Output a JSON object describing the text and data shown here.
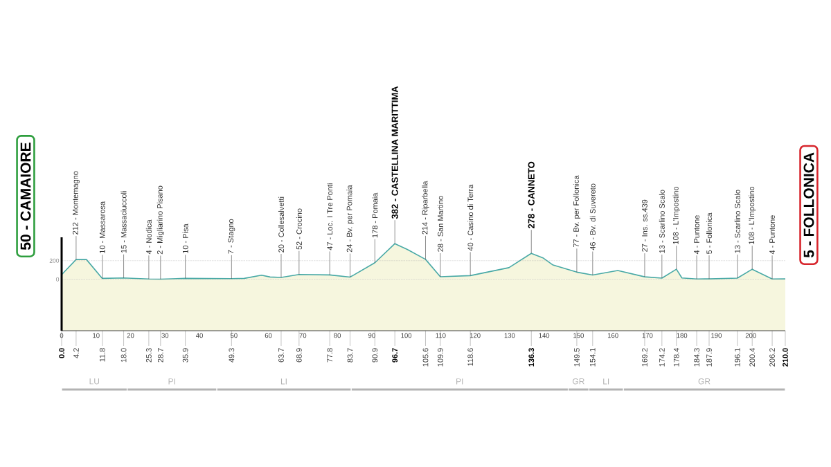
{
  "chart_data": [
    {
      "type": "area",
      "x": [
        0,
        4.2,
        7.2,
        11.8,
        18.0,
        25.3,
        28.7,
        35.9,
        49.3,
        53,
        58,
        60.5,
        63.7,
        68.9,
        77.8,
        83.7,
        90.9,
        96.7,
        100.3,
        105.6,
        109.9,
        118.6,
        129.8,
        136.3,
        139.8,
        142.6,
        149.5,
        154.1,
        161.4,
        169.2,
        174.2,
        178.4,
        180,
        184.3,
        187.9,
        196.1,
        200.4,
        206.2,
        210
      ],
      "values": [
        50,
        212,
        212,
        10,
        15,
        4,
        2,
        10,
        7,
        10,
        45,
        25,
        20,
        52,
        47,
        24,
        178,
        382,
        320,
        214,
        28,
        40,
        125,
        278,
        227,
        153,
        77,
        46,
        94,
        27,
        13,
        108,
        15,
        4,
        5,
        13,
        108,
        4,
        5
      ],
      "color": "#48a9a6",
      "xlim": [
        0,
        210
      ],
      "xticks": [
        0,
        10,
        20,
        30,
        40,
        50,
        60,
        70,
        80,
        90,
        100,
        110,
        120,
        130,
        140,
        150,
        160,
        170,
        180,
        190,
        200
      ],
      "ylim": [
        -550,
        450
      ],
      "yticks": [
        0,
        200
      ],
      "grid": "y",
      "annotations": [
        {
          "text": "50 - CAMAIORE",
          "x": 0,
          "y": 50
        },
        {
          "text": "212 - Montemagno",
          "x": 4.2,
          "y": 212
        },
        {
          "text": "10 - Massarosa",
          "x": 11.8,
          "y": 10
        },
        {
          "text": "15 - Massaciuccoli",
          "x": 18.0,
          "y": 15
        },
        {
          "text": "4 - Nodica",
          "x": 25.3,
          "y": 4
        },
        {
          "text": "2 - Migliarino Pisano",
          "x": 28.7,
          "y": 2
        },
        {
          "text": "10 - Pisa",
          "x": 35.9,
          "y": 10
        },
        {
          "text": "7 - Stagno",
          "x": 49.3,
          "y": 7
        },
        {
          "text": "20 - Collesalvetti",
          "x": 63.7,
          "y": 20
        },
        {
          "text": "52 - Crocino",
          "x": 68.9,
          "y": 52
        },
        {
          "text": "47 - Loc. I Tre Ponti",
          "x": 77.8,
          "y": 47
        },
        {
          "text": "24 - Bv. per Pomaia",
          "x": 83.7,
          "y": 24
        },
        {
          "text": "178 - Pomaia",
          "x": 90.9,
          "y": 178
        },
        {
          "text": "382 - CASTELLINA MARITTIMA",
          "x": 96.7,
          "y": 382
        },
        {
          "text": "214 - Riparbella",
          "x": 105.6,
          "y": 214
        },
        {
          "text": "28 - San Martino",
          "x": 109.9,
          "y": 28
        },
        {
          "text": "40 - Casino di Terra",
          "x": 118.6,
          "y": 40
        },
        {
          "text": "278 - CANNETO",
          "x": 136.3,
          "y": 278
        },
        {
          "text": "77 - Bv. per Follonica",
          "x": 149.5,
          "y": 77
        },
        {
          "text": "46 - Bv. di Suvereto",
          "x": 154.1,
          "y": 46
        },
        {
          "text": "27 - Ins. ss.439",
          "x": 169.2,
          "y": 27
        },
        {
          "text": "13 - Scarlino Scalo",
          "x": 174.2,
          "y": 13
        },
        {
          "text": "108 - L'Impostino",
          "x": 178.4,
          "y": 108
        },
        {
          "text": "4 - Puntone",
          "x": 184.3,
          "y": 4
        },
        {
          "text": "5 - Follonica",
          "x": 187.9,
          "y": 5
        },
        {
          "text": "13 - Scarlino Scalo",
          "x": 196.1,
          "y": 13
        },
        {
          "text": "108 - L'Impostino",
          "x": 200.4,
          "y": 108
        },
        {
          "text": "4 - Puntone",
          "x": 206.2,
          "y": 4
        },
        {
          "text": "5 - FOLLONICA",
          "x": 210,
          "y": 5
        },
        {
          "text": "0.0",
          "x": 0,
          "y": -550
        },
        {
          "text": "4.2",
          "x": 4.2,
          "y": -550
        },
        {
          "text": "11.8",
          "x": 11.8,
          "y": -550
        },
        {
          "text": "18.0",
          "x": 18.0,
          "y": -550
        },
        {
          "text": "25.3",
          "x": 25.3,
          "y": -550
        },
        {
          "text": "28.7",
          "x": 28.7,
          "y": -550
        },
        {
          "text": "35.9",
          "x": 35.9,
          "y": -550
        },
        {
          "text": "49.3",
          "x": 49.3,
          "y": -550
        },
        {
          "text": "63.7",
          "x": 63.7,
          "y": -550
        },
        {
          "text": "68.9",
          "x": 68.9,
          "y": -550
        },
        {
          "text": "77.8",
          "x": 77.8,
          "y": -550
        },
        {
          "text": "83.7",
          "x": 83.7,
          "y": -550
        },
        {
          "text": "90.9",
          "x": 90.9,
          "y": -550
        },
        {
          "text": "96.7",
          "x": 96.7,
          "y": -550
        },
        {
          "text": "105.6",
          "x": 105.6,
          "y": -550
        },
        {
          "text": "109.9",
          "x": 109.9,
          "y": -550
        },
        {
          "text": "118.6",
          "x": 118.6,
          "y": -550
        },
        {
          "text": "136.3",
          "x": 136.3,
          "y": -550
        },
        {
          "text": "149.5",
          "x": 149.5,
          "y": -550
        },
        {
          "text": "154.1",
          "x": 154.1,
          "y": -550
        },
        {
          "text": "169.2",
          "x": 169.2,
          "y": -550
        },
        {
          "text": "174.2",
          "x": 174.2,
          "y": -550
        },
        {
          "text": "178.4",
          "x": 178.4,
          "y": -550
        },
        {
          "text": "184.3",
          "x": 184.3,
          "y": -550
        },
        {
          "text": "187.9",
          "x": 187.9,
          "y": -550
        },
        {
          "text": "196.1",
          "x": 196.1,
          "y": -550
        },
        {
          "text": "200.4",
          "x": 200.4,
          "y": -550
        },
        {
          "text": "206.2",
          "x": 206.2,
          "y": -550
        },
        {
          "text": "210.0",
          "x": 210,
          "y": -550
        }
      ],
      "bands": [
        {
          "axis": "y",
          "from": -550,
          "to": 0,
          "color": "#f6f6de"
        }
      ]
    },
    {
      "type": "bar",
      "orientation": "horizontal",
      "stacked": true,
      "categories": [
        null
      ],
      "series": [
        {
          "name": "LU",
          "color": "#b3b3b3",
          "values": [
            19
          ]
        },
        {
          "name": "PI",
          "color": "#b3b3b3",
          "values": [
            26
          ]
        },
        {
          "name": "LI",
          "color": "#b3b3b3",
          "values": [
            39
          ]
        },
        {
          "name": "PI",
          "color": "#b3b3b3",
          "values": [
            63
          ]
        },
        {
          "name": "GR",
          "color": "#b3b3b3",
          "values": [
            6
          ]
        },
        {
          "name": "LI",
          "color": "#b3b3b3",
          "values": [
            10
          ]
        },
        {
          "name": "GR",
          "color": "#b3b3b3",
          "values": [
            47
          ]
        }
      ],
      "xlim": [
        0,
        210
      ],
      "tick_labels": false
    }
  ]
}
